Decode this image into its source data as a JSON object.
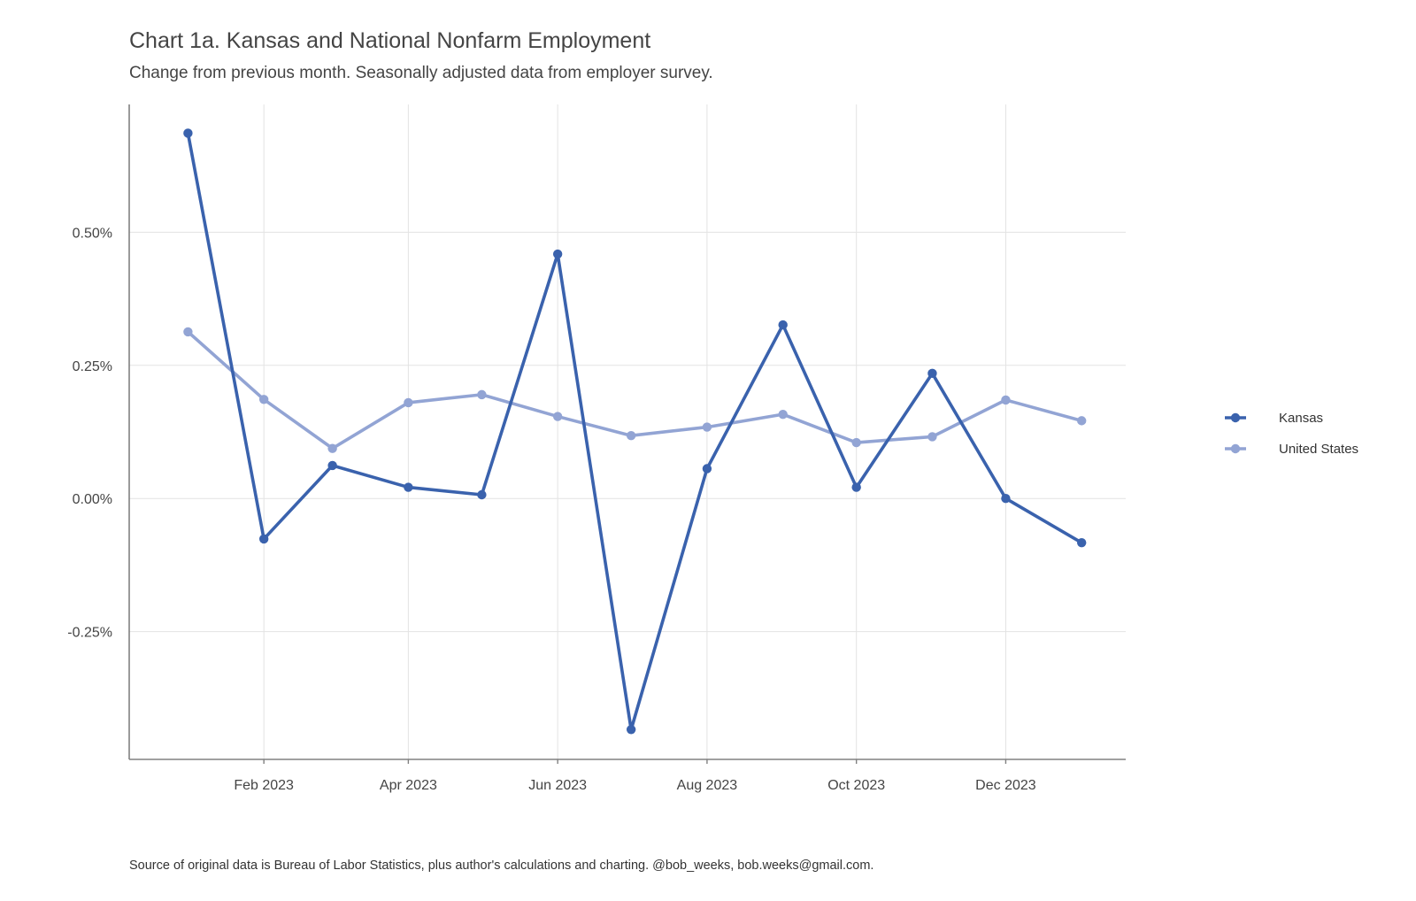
{
  "chart_data": {
    "type": "line",
    "title": "Chart 1a. Kansas and National Nonfarm Employment",
    "subtitle": "Change from previous month. Seasonally adjusted data from employer survey.",
    "caption": "Source of original data is Bureau of Labor Statistics, plus author's calculations and charting. @bob_weeks, bob.weeks@gmail.com.",
    "xlabel": "",
    "ylabel": "",
    "x": [
      "2023-01-01",
      "2023-02-01",
      "2023-03-01",
      "2023-04-01",
      "2023-05-01",
      "2023-06-01",
      "2023-07-01",
      "2023-08-01",
      "2023-09-01",
      "2023-10-01",
      "2023-11-01",
      "2023-12-01",
      "2024-01-01"
    ],
    "x_ticks": [
      {
        "date": "2023-02-01",
        "label": "Feb 2023"
      },
      {
        "date": "2023-04-01",
        "label": "Apr 2023"
      },
      {
        "date": "2023-06-01",
        "label": "Jun 2023"
      },
      {
        "date": "2023-08-01",
        "label": "Aug 2023"
      },
      {
        "date": "2023-10-01",
        "label": "Oct 2023"
      },
      {
        "date": "2023-12-01",
        "label": "Dec 2023"
      }
    ],
    "y_ticks": [
      {
        "value": 0.5,
        "label": "0.50%"
      },
      {
        "value": 0.25,
        "label": "0.25%"
      },
      {
        "value": 0.0,
        "label": "0.00%"
      },
      {
        "value": -0.25,
        "label": "-0.25%"
      }
    ],
    "xlim": [
      "2022-12-08",
      "2024-01-19"
    ],
    "ylim": [
      -0.49,
      0.74
    ],
    "grid": true,
    "legend_position": "right",
    "series": [
      {
        "name": "Kansas",
        "color": "#3a62ad",
        "values": [
          0.686,
          -0.076,
          0.062,
          0.021,
          0.007,
          0.459,
          -0.434,
          0.056,
          0.326,
          0.021,
          0.235,
          0.0,
          -0.083
        ]
      },
      {
        "name": "United States",
        "color": "#92a4d4",
        "values": [
          0.313,
          0.186,
          0.094,
          0.18,
          0.195,
          0.154,
          0.118,
          0.134,
          0.158,
          0.105,
          0.116,
          0.185,
          0.146
        ]
      }
    ]
  }
}
